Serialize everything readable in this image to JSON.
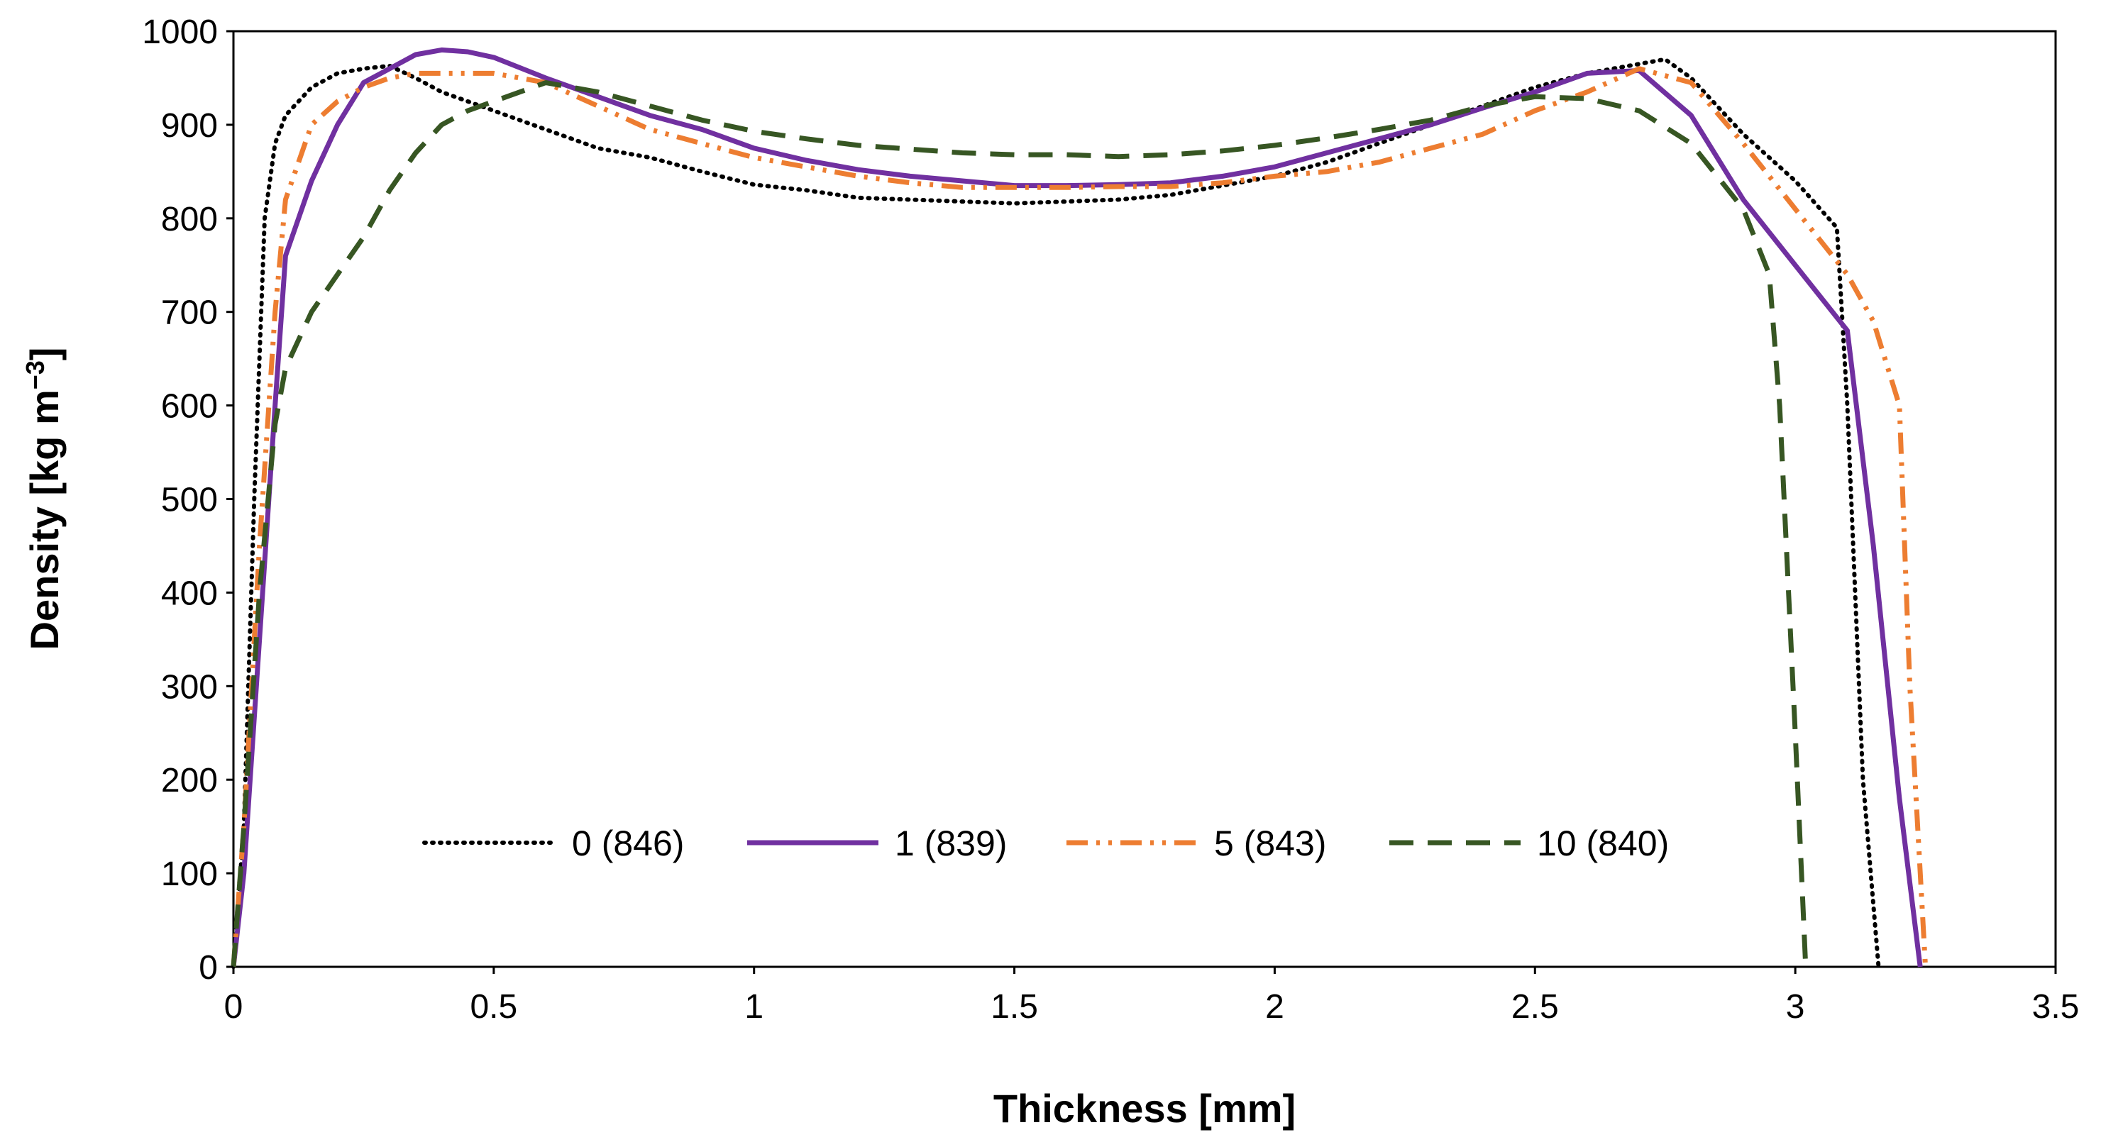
{
  "chart_data": {
    "type": "line",
    "title": "",
    "xlabel": "Thickness [mm]",
    "ylabel_main": "Density [kg m",
    "ylabel_sup": "−3",
    "ylabel_close": "]",
    "xlim": [
      0,
      3.5
    ],
    "ylim": [
      0,
      1000
    ],
    "xticks": [
      0,
      0.5,
      1,
      1.5,
      2,
      2.5,
      3,
      3.5
    ],
    "xtick_labels": [
      "0",
      "0.5",
      "1",
      "1.5",
      "2",
      "2.5",
      "3",
      "3.5"
    ],
    "yticks": [
      0,
      100,
      200,
      300,
      400,
      500,
      600,
      700,
      800,
      900,
      1000
    ],
    "ytick_labels": [
      "0",
      "100",
      "200",
      "300",
      "400",
      "500",
      "600",
      "700",
      "800",
      "900",
      "1000"
    ],
    "grid": false,
    "legend_position": "bottom-center",
    "series": [
      {
        "name": "0 (846)",
        "color": "#000000",
        "dash": "dotted",
        "x": [
          0,
          0.02,
          0.04,
          0.06,
          0.08,
          0.1,
          0.15,
          0.2,
          0.25,
          0.3,
          0.35,
          0.4,
          0.5,
          0.6,
          0.7,
          0.8,
          0.9,
          1.0,
          1.1,
          1.2,
          1.3,
          1.4,
          1.5,
          1.6,
          1.7,
          1.8,
          1.9,
          2.0,
          2.1,
          2.2,
          2.3,
          2.4,
          2.5,
          2.6,
          2.7,
          2.75,
          2.8,
          2.9,
          3.0,
          3.08,
          3.1,
          3.13,
          3.16
        ],
        "y": [
          0,
          150,
          500,
          800,
          880,
          910,
          940,
          955,
          960,
          963,
          950,
          935,
          915,
          895,
          875,
          865,
          850,
          836,
          830,
          822,
          820,
          818,
          816,
          818,
          820,
          825,
          835,
          845,
          860,
          880,
          900,
          920,
          940,
          955,
          965,
          970,
          950,
          890,
          840,
          790,
          600,
          200,
          0
        ]
      },
      {
        "name": "1 (839)",
        "color": "#7030a0",
        "dash": "solid",
        "x": [
          0,
          0.02,
          0.05,
          0.08,
          0.1,
          0.15,
          0.2,
          0.25,
          0.3,
          0.35,
          0.4,
          0.45,
          0.5,
          0.6,
          0.7,
          0.8,
          0.9,
          1.0,
          1.1,
          1.2,
          1.3,
          1.4,
          1.5,
          1.6,
          1.7,
          1.8,
          1.9,
          2.0,
          2.1,
          2.2,
          2.3,
          2.4,
          2.5,
          2.6,
          2.7,
          2.8,
          2.9,
          3.0,
          3.1,
          3.15,
          3.2,
          3.24
        ],
        "y": [
          0,
          100,
          350,
          600,
          760,
          840,
          900,
          945,
          960,
          975,
          980,
          978,
          972,
          950,
          930,
          910,
          895,
          875,
          862,
          852,
          845,
          840,
          835,
          835,
          836,
          838,
          845,
          855,
          870,
          885,
          900,
          918,
          935,
          955,
          958,
          910,
          820,
          750,
          680,
          450,
          180,
          0
        ]
      },
      {
        "name": "5 (843)",
        "color": "#ed7d31",
        "dash": "dash-dot-dot",
        "x": [
          0,
          0.02,
          0.05,
          0.08,
          0.1,
          0.15,
          0.2,
          0.25,
          0.3,
          0.35,
          0.4,
          0.5,
          0.6,
          0.7,
          0.8,
          0.9,
          1.0,
          1.1,
          1.2,
          1.3,
          1.4,
          1.5,
          1.6,
          1.7,
          1.8,
          1.9,
          2.0,
          2.1,
          2.2,
          2.3,
          2.4,
          2.5,
          2.6,
          2.7,
          2.8,
          2.9,
          3.0,
          3.1,
          3.15,
          3.2,
          3.22,
          3.25
        ],
        "y": [
          0,
          150,
          450,
          700,
          820,
          900,
          925,
          940,
          950,
          955,
          955,
          955,
          945,
          920,
          895,
          880,
          865,
          855,
          845,
          838,
          833,
          833,
          833,
          834,
          834,
          838,
          845,
          850,
          860,
          875,
          890,
          915,
          935,
          960,
          945,
          880,
          810,
          740,
          690,
          600,
          300,
          0
        ]
      },
      {
        "name": "10 (840)",
        "color": "#375623",
        "dash": "dashed",
        "x": [
          0,
          0.02,
          0.05,
          0.08,
          0.1,
          0.15,
          0.2,
          0.25,
          0.3,
          0.35,
          0.4,
          0.45,
          0.5,
          0.6,
          0.7,
          0.8,
          0.9,
          1.0,
          1.1,
          1.2,
          1.3,
          1.4,
          1.5,
          1.6,
          1.7,
          1.8,
          1.9,
          2.0,
          2.1,
          2.2,
          2.3,
          2.4,
          2.5,
          2.6,
          2.7,
          2.8,
          2.9,
          2.95,
          2.97,
          3.0,
          3.02
        ],
        "y": [
          0,
          150,
          400,
          580,
          640,
          700,
          740,
          780,
          830,
          870,
          900,
          915,
          925,
          945,
          935,
          920,
          905,
          893,
          885,
          878,
          874,
          870,
          868,
          868,
          866,
          868,
          872,
          878,
          886,
          895,
          905,
          920,
          930,
          928,
          915,
          880,
          810,
          740,
          600,
          250,
          0
        ]
      }
    ]
  }
}
